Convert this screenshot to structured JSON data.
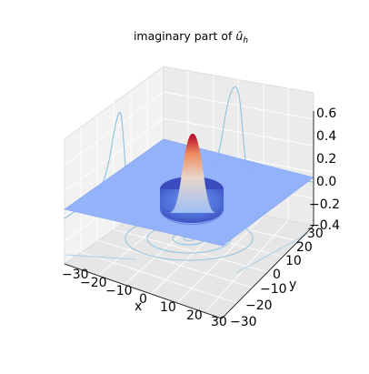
{
  "chart_data": {
    "type": "surface",
    "title_text": "imaginary part of ",
    "title_symbol": "û",
    "title_subscript": "h",
    "xlabel": "x",
    "ylabel": "y",
    "zlabel": "",
    "xlim": [
      -30,
      30
    ],
    "ylim": [
      -30,
      30
    ],
    "zlim": [
      -0.4,
      0.6
    ],
    "x_ticks": [
      "−30",
      "−20",
      "−10",
      "0",
      "10",
      "20",
      "30"
    ],
    "y_ticks": [
      "−30",
      "−20",
      "−10",
      "0",
      "10",
      "20",
      "30"
    ],
    "z_ticks": [
      "−0.4",
      "−0.2",
      "0.0",
      "0.2",
      "0.4",
      "0.6"
    ],
    "surface": {
      "colormap": "coolwarm",
      "flat_level": 0.0,
      "peak_value": 0.48,
      "trough_value": -0.3,
      "trough_radius": 5
    },
    "projections": {
      "x_wall_profile": [
        {
          "y": -30,
          "z": 0.0
        },
        {
          "y": -15,
          "z": 0.02
        },
        {
          "y": -10,
          "z": 0.14
        },
        {
          "y": -7,
          "z": 0.42
        },
        {
          "y": -4,
          "z": 0.2
        },
        {
          "y": -2,
          "z": 0.05
        },
        {
          "y": 0,
          "z": -0.18
        },
        {
          "y": 2,
          "z": 0.05
        },
        {
          "y": 5,
          "z": 0.22
        },
        {
          "y": 8,
          "z": 0.5
        },
        {
          "y": 11,
          "z": 0.2
        },
        {
          "y": 16,
          "z": 0.02
        },
        {
          "y": 30,
          "z": 0.0
        }
      ]
    },
    "grid": true
  }
}
